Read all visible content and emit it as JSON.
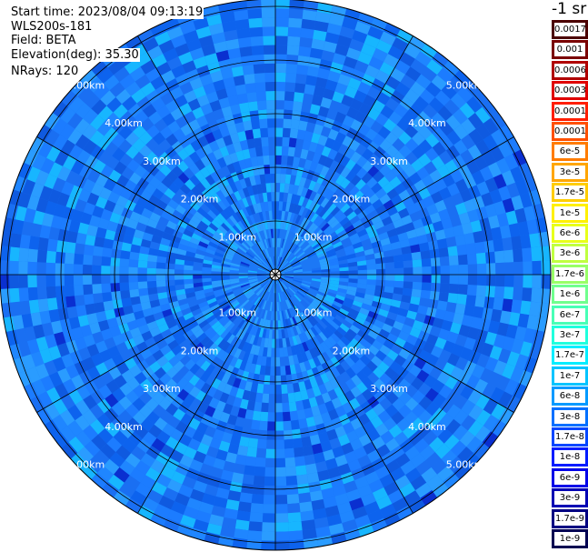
{
  "header": {
    "start_time": "Start time: 2023/08/04 09:13:19",
    "instrument": "WLS200s-181",
    "field": "Field: BETA",
    "elevation": "Elevation(deg): 35.30",
    "nrays": "NRays: 120"
  },
  "range_rings": [
    "1.00km",
    "2.00km",
    "3.00km",
    "4.00km",
    "5.00km"
  ],
  "colorscale": {
    "unit": "-1 sr",
    "levels": [
      {
        "label": "0.0017",
        "color": "#4b0000"
      },
      {
        "label": "0.001",
        "color": "#7a0000"
      },
      {
        "label": "0.0006",
        "color": "#b00000"
      },
      {
        "label": "0.0003",
        "color": "#e00000"
      },
      {
        "label": "0.00017",
        "color": "#ff1e00"
      },
      {
        "label": "0.0001",
        "color": "#ff5000"
      },
      {
        "label": "6e-5",
        "color": "#ff7c00"
      },
      {
        "label": "3e-5",
        "color": "#ffa600"
      },
      {
        "label": "1.7e-5",
        "color": "#ffcd00"
      },
      {
        "label": "1e-5",
        "color": "#fff000"
      },
      {
        "label": "6e-6",
        "color": "#e8ff1a"
      },
      {
        "label": "3e-6",
        "color": "#c0ff40"
      },
      {
        "label": "1.7e-6",
        "color": "#98ff66"
      },
      {
        "label": "1e-6",
        "color": "#70ff8e"
      },
      {
        "label": "6e-7",
        "color": "#48ffb6"
      },
      {
        "label": "3e-7",
        "color": "#20ffdd"
      },
      {
        "label": "1.7e-7",
        "color": "#00eeff"
      },
      {
        "label": "1e-7",
        "color": "#00c4ff"
      },
      {
        "label": "6e-8",
        "color": "#009aff"
      },
      {
        "label": "3e-8",
        "color": "#0070ff"
      },
      {
        "label": "1.7e-8",
        "color": "#0046ff"
      },
      {
        "label": "1e-8",
        "color": "#001cff"
      },
      {
        "label": "6e-9",
        "color": "#0000e8"
      },
      {
        "label": "3e-9",
        "color": "#0000b4"
      },
      {
        "label": "1.7e-9",
        "color": "#000082"
      },
      {
        "label": "1e-9",
        "color": "#000052"
      }
    ]
  }
}
